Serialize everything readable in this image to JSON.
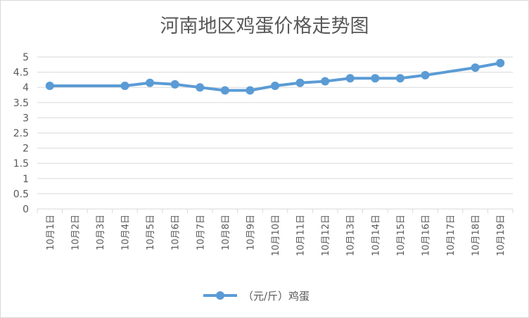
{
  "chart_data": {
    "type": "line",
    "title": "河南地区鸡蛋价格走势图",
    "categories": [
      "10月1日",
      "10月2日",
      "10月3日",
      "10月4日",
      "10月5日",
      "10月6日",
      "10月7日",
      "10月8日",
      "10月9日",
      "10月10日",
      "10月11日",
      "10月12日",
      "10月13日",
      "10月14日",
      "10月15日",
      "10月16日",
      "10月17日",
      "10月18日",
      "10月19日"
    ],
    "series": [
      {
        "name": "（元/斤）鸡蛋",
        "values": [
          4.05,
          null,
          null,
          4.05,
          4.15,
          4.1,
          4.0,
          3.9,
          3.9,
          4.05,
          4.15,
          4.2,
          4.3,
          4.3,
          4.3,
          4.4,
          null,
          4.65,
          4.8
        ],
        "color": "#5b9bd5"
      }
    ],
    "yticks": [
      "0",
      "0.5",
      "1",
      "1.5",
      "2",
      "2.5",
      "3",
      "3.5",
      "4",
      "4.5",
      "5"
    ],
    "ylim": [
      0,
      5
    ],
    "grid": true,
    "legend_position": "bottom",
    "gridline_color": "#d9d9d9"
  }
}
